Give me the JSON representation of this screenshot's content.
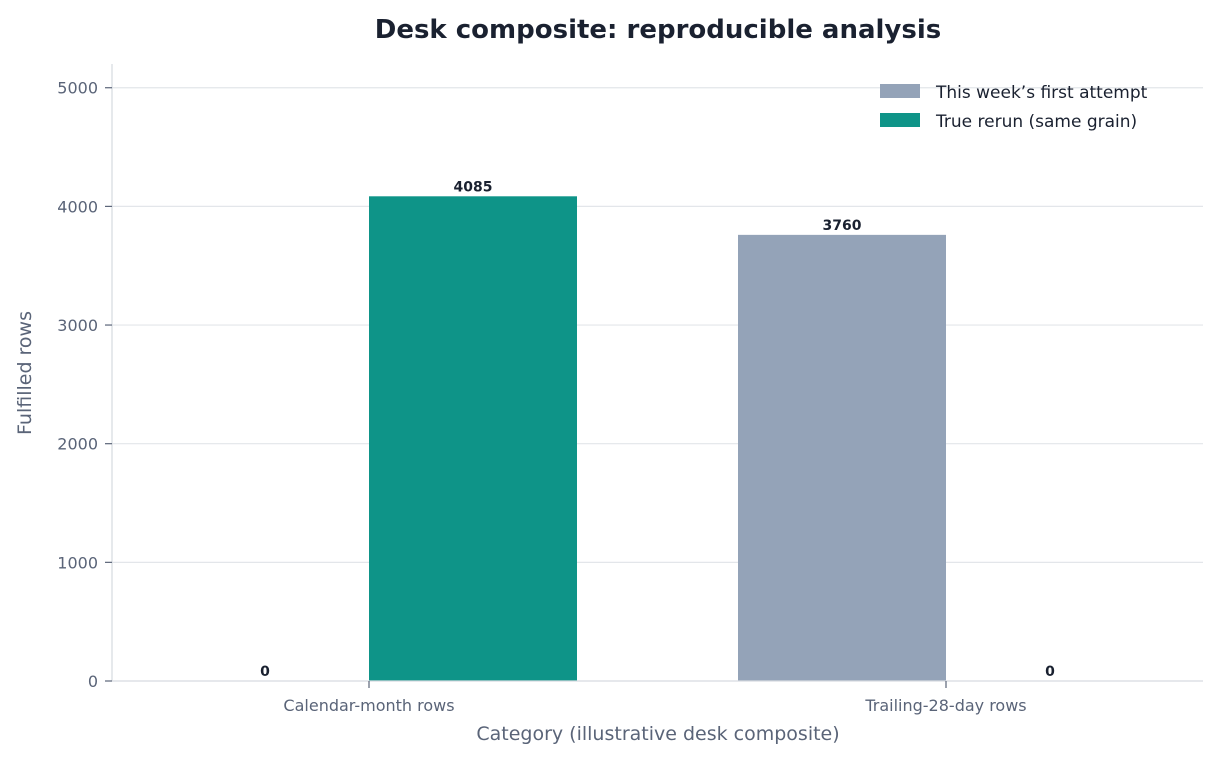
{
  "chart_data": {
    "type": "bar",
    "title": "Desk composite: reproducible analysis",
    "xlabel": "Category (illustrative desk composite)",
    "ylabel": "Fulfilled rows",
    "categories": [
      "Calendar-month rows",
      "Trailing-28-day rows"
    ],
    "series": [
      {
        "name": "This week’s first attempt",
        "values": [
          0,
          3760
        ],
        "color": "#94a3b8"
      },
      {
        "name": "True rerun (same grain)",
        "values": [
          4085,
          0
        ],
        "color": "#0e9488"
      }
    ],
    "ylim": [
      0,
      5200
    ],
    "yticks": [
      0,
      1000,
      2000,
      3000,
      4000,
      5000
    ],
    "grid": "horizontal",
    "legend_position": "top-right",
    "data_labels": true
  }
}
